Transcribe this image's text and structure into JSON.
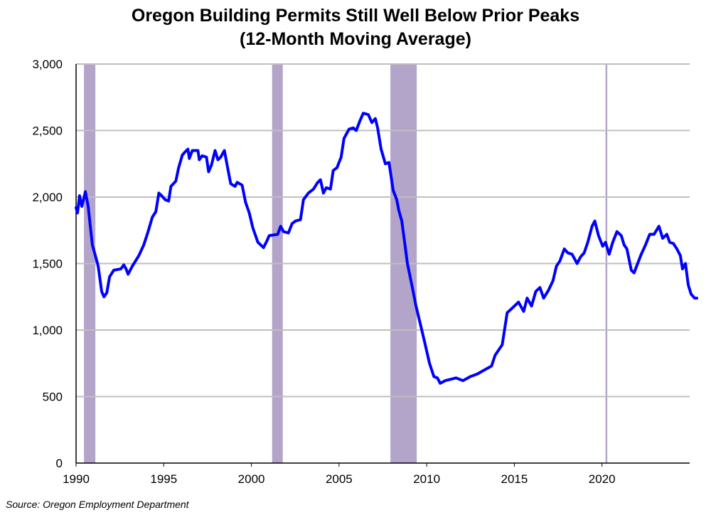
{
  "chart_data": {
    "type": "line",
    "title": "Oregon Building Permits Still Well Below Prior Peaks",
    "subtitle": "(12-Month Moving Average)",
    "xlabel": "",
    "ylabel": "",
    "xlim": [
      1990,
      2025
    ],
    "ylim": [
      0,
      3000
    ],
    "x_ticks": [
      1990,
      1995,
      2000,
      2005,
      2010,
      2015,
      2020
    ],
    "x_tick_labels": [
      "1990",
      "1995",
      "2000",
      "2005",
      "2010",
      "2015",
      "2020"
    ],
    "y_ticks": [
      0,
      500,
      1000,
      1500,
      2000,
      2500,
      3000
    ],
    "y_tick_labels": [
      "0",
      "500",
      "1,000",
      "1,500",
      "2,000",
      "2,500",
      "3,000"
    ],
    "grid": "horizontal",
    "legend": "none",
    "colors": {
      "line": "#0000ff",
      "recession": "#b3a4c9",
      "grid": "#bfbfbf"
    },
    "recession_shading": [
      [
        1990.45,
        1991.1
      ],
      [
        2001.18,
        2001.79
      ],
      [
        2007.93,
        2009.43
      ],
      [
        2020.2,
        2020.3
      ]
    ],
    "series": [
      {
        "x": [
          1990.0,
          1990.08,
          1990.2,
          1990.33,
          1990.53,
          1990.69,
          1990.93,
          1991.1,
          1991.26,
          1991.46,
          1991.59,
          1991.75,
          1991.91,
          1992.15,
          1992.56,
          1992.72,
          1992.85,
          1992.97,
          1993.21,
          1993.58,
          1993.86,
          1994.11,
          1994.35,
          1994.55,
          1994.72,
          1994.88,
          1995.08,
          1995.28,
          1995.41,
          1995.69,
          1995.85,
          1996.06,
          1996.22,
          1996.38,
          1996.46,
          1996.63,
          1996.95,
          1997.03,
          1997.2,
          1997.44,
          1997.56,
          1997.72,
          1997.93,
          1998.09,
          1998.25,
          1998.46,
          1998.66,
          1998.82,
          1999.07,
          1999.19,
          1999.47,
          1999.67,
          1999.88,
          2000.08,
          2000.37,
          2000.69,
          2000.85,
          2001.02,
          2001.5,
          2001.67,
          2001.83,
          2002.11,
          2002.32,
          2002.52,
          2002.8,
          2002.97,
          2003.25,
          2003.54,
          2003.78,
          2003.94,
          2004.11,
          2004.27,
          2004.51,
          2004.67,
          2004.88,
          2005.12,
          2005.28,
          2005.57,
          2005.81,
          2005.98,
          2006.18,
          2006.38,
          2006.67,
          2006.87,
          2007.07,
          2007.2,
          2007.4,
          2007.64,
          2007.85,
          2008.09,
          2008.29,
          2008.41,
          2008.58,
          2008.74,
          2008.9,
          2009.15,
          2009.39,
          2009.63,
          2009.88,
          2010.16,
          2010.41,
          2010.61,
          2010.77,
          2011.06,
          2011.67,
          2012.07,
          2012.48,
          2012.89,
          2013.29,
          2013.7,
          2013.9,
          2014.31,
          2014.59,
          2014.92,
          2015.24,
          2015.53,
          2015.73,
          2015.98,
          2016.22,
          2016.46,
          2016.67,
          2016.95,
          2017.2,
          2017.4,
          2017.6,
          2017.85,
          2018.05,
          2018.29,
          2018.58,
          2018.78,
          2018.98,
          2019.19,
          2019.43,
          2019.59,
          2019.8,
          2020.04,
          2020.2,
          2020.41,
          2020.61,
          2020.85,
          2021.1,
          2021.26,
          2021.42,
          2021.67,
          2021.83,
          2022.03,
          2022.24,
          2022.48,
          2022.72,
          2022.97,
          2023.25,
          2023.46,
          2023.7,
          2023.86,
          2024.07,
          2024.27,
          2024.47,
          2024.59,
          2024.76,
          2024.92,
          2025.08,
          2025.28,
          2025.41
        ],
        "values": [
          1920,
          1880,
          2010,
          1930,
          2040,
          1930,
          1640,
          1560,
          1480,
          1290,
          1250,
          1280,
          1400,
          1450,
          1460,
          1490,
          1460,
          1420,
          1480,
          1560,
          1640,
          1740,
          1850,
          1890,
          2030,
          2010,
          1980,
          1970,
          2080,
          2120,
          2220,
          2315,
          2340,
          2360,
          2290,
          2350,
          2350,
          2280,
          2310,
          2300,
          2190,
          2240,
          2350,
          2280,
          2300,
          2350,
          2210,
          2100,
          2080,
          2110,
          2090,
          1960,
          1880,
          1770,
          1660,
          1620,
          1660,
          1710,
          1720,
          1780,
          1740,
          1730,
          1800,
          1820,
          1830,
          1980,
          2030,
          2060,
          2110,
          2130,
          2030,
          2070,
          2060,
          2200,
          2220,
          2300,
          2440,
          2510,
          2520,
          2500,
          2570,
          2630,
          2620,
          2560,
          2590,
          2520,
          2360,
          2250,
          2260,
          2050,
          1980,
          1900,
          1820,
          1660,
          1500,
          1340,
          1180,
          1050,
          910,
          750,
          650,
          640,
          600,
          620,
          640,
          620,
          650,
          670,
          700,
          730,
          810,
          890,
          1130,
          1170,
          1210,
          1140,
          1240,
          1180,
          1290,
          1320,
          1240,
          1300,
          1370,
          1480,
          1520,
          1610,
          1580,
          1570,
          1500,
          1550,
          1580,
          1660,
          1780,
          1820,
          1710,
          1630,
          1660,
          1570,
          1660,
          1740,
          1710,
          1640,
          1610,
          1450,
          1430,
          1500,
          1570,
          1640,
          1720,
          1720,
          1780,
          1690,
          1720,
          1660,
          1650,
          1610,
          1560,
          1460,
          1500,
          1340,
          1270,
          1240,
          1240
        ]
      }
    ]
  },
  "source": "Source: Oregon Employment Department"
}
